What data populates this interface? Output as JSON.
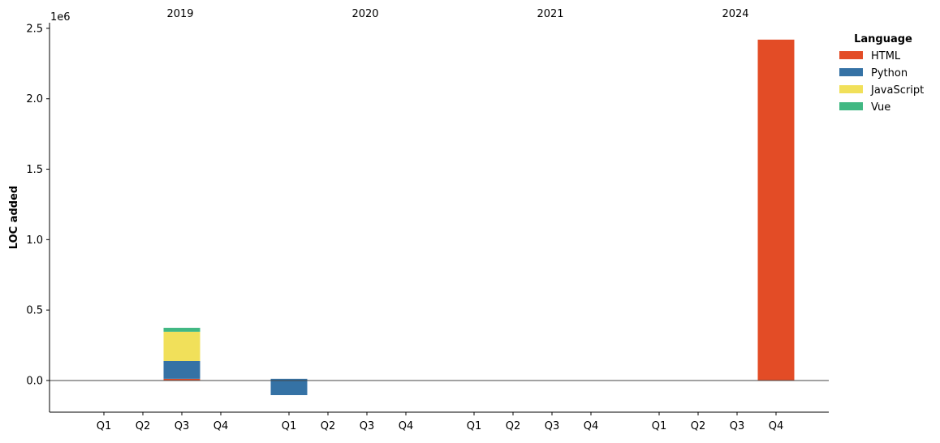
{
  "chart_data": {
    "type": "bar",
    "stacked": true,
    "ylabel": "LOC added",
    "xlabel": "",
    "y_offset_label": "1e6",
    "ylim": [
      -225000,
      2540000
    ],
    "yticks": [
      0,
      500000,
      1000000,
      1500000,
      2000000,
      2500000
    ],
    "ytick_labels": [
      "0.0",
      "0.5",
      "1.0",
      "1.5",
      "2.0",
      "2.5"
    ],
    "grid": false,
    "zero_line": true,
    "groups": [
      {
        "year": "2019",
        "quarters": [
          "Q1",
          "Q2",
          "Q3",
          "Q4"
        ]
      },
      {
        "year": "2020",
        "quarters": [
          "Q1",
          "Q2",
          "Q3",
          "Q4"
        ]
      },
      {
        "year": "2021",
        "quarters": [
          "Q1",
          "Q2",
          "Q3",
          "Q4"
        ]
      },
      {
        "year": "2024",
        "quarters": [
          "Q1",
          "Q2",
          "Q3",
          "Q4"
        ]
      }
    ],
    "categories": [
      "2019 Q1",
      "2019 Q2",
      "2019 Q3",
      "2019 Q4",
      "2020 Q1",
      "2020 Q2",
      "2020 Q3",
      "2020 Q4",
      "2021 Q1",
      "2021 Q2",
      "2021 Q3",
      "2021 Q4",
      "2024 Q1",
      "2024 Q2",
      "2024 Q3",
      "2024 Q4"
    ],
    "series": [
      {
        "name": "HTML",
        "color": "#e34c26",
        "values": [
          0,
          0,
          12000,
          0,
          0,
          0,
          0,
          0,
          0,
          0,
          0,
          0,
          0,
          0,
          0,
          2420000
        ]
      },
      {
        "name": "Python",
        "color": "#3572a5",
        "values": [
          0,
          0,
          126000,
          0,
          12000,
          0,
          0,
          0,
          0,
          0,
          0,
          0,
          0,
          0,
          0,
          0
        ],
        "negative_values": [
          0,
          0,
          0,
          0,
          -104000,
          0,
          0,
          0,
          0,
          0,
          0,
          0,
          0,
          0,
          0,
          0
        ]
      },
      {
        "name": "JavaScript",
        "color": "#f1e05a",
        "values": [
          0,
          0,
          208000,
          0,
          0,
          0,
          0,
          0,
          0,
          0,
          0,
          0,
          0,
          0,
          0,
          0
        ]
      },
      {
        "name": "Vue",
        "color": "#41b883",
        "values": [
          0,
          0,
          28000,
          0,
          0,
          0,
          0,
          0,
          0,
          0,
          0,
          0,
          0,
          0,
          0,
          0
        ]
      }
    ],
    "legend": {
      "title": "Language",
      "placement": "right-top-outside"
    }
  }
}
